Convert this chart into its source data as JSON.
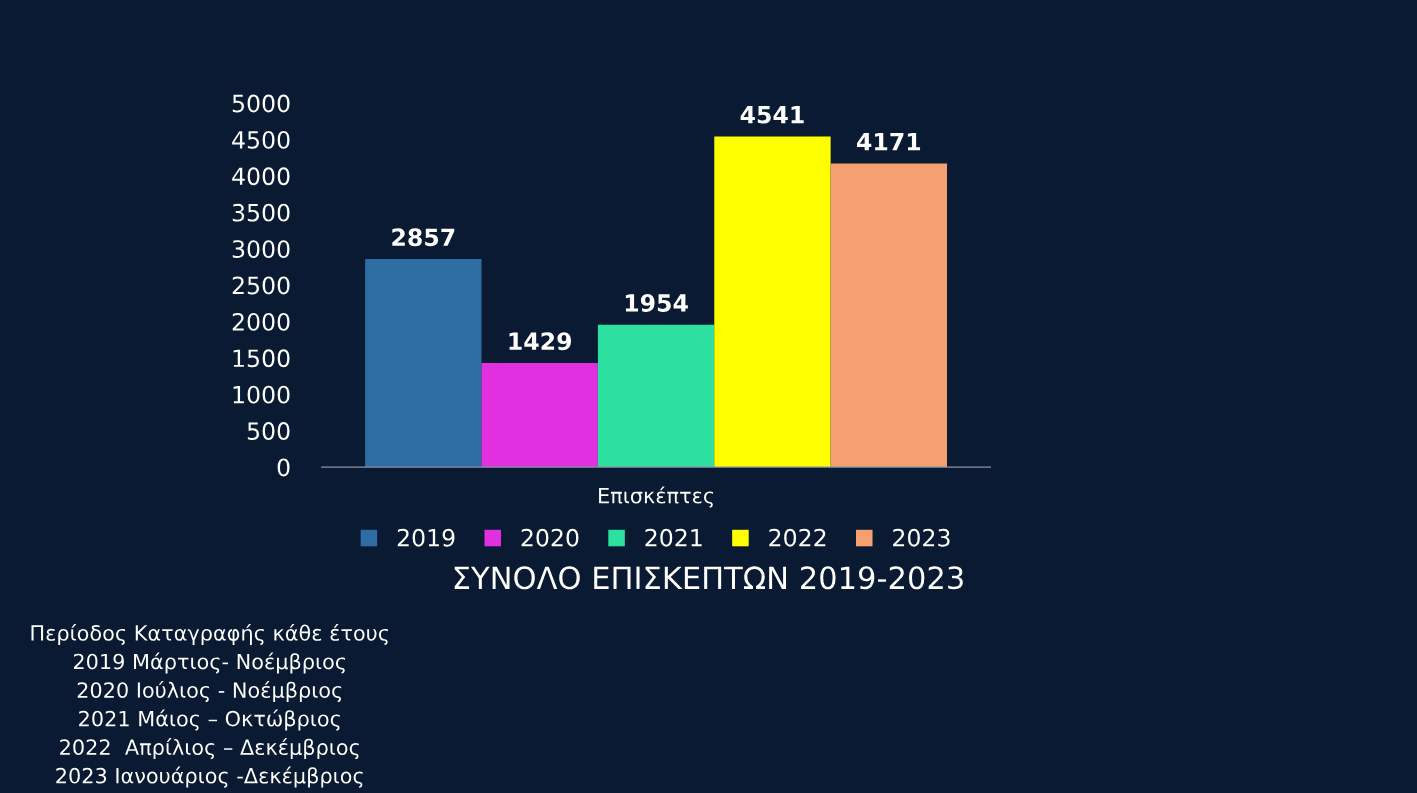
{
  "chart_data": {
    "type": "bar",
    "title": "ΣΥΝΟΛΟ ΕΠΙΣΚΕΠΤΩΝ 2019-2023",
    "categories": [
      "Επισκέπτες"
    ],
    "series": [
      {
        "name": "2019",
        "color": "#2e6da4",
        "values": [
          2857
        ]
      },
      {
        "name": "2020",
        "color": "#e030e0",
        "values": [
          1429
        ]
      },
      {
        "name": "2021",
        "color": "#2ee0a0",
        "values": [
          1954
        ]
      },
      {
        "name": "2022",
        "color": "#ffff00",
        "values": [
          4541
        ]
      },
      {
        "name": "2023",
        "color": "#f4a070",
        "values": [
          4171
        ]
      }
    ],
    "ylim": [
      0,
      5000
    ],
    "yticks": [
      0,
      500,
      1000,
      1500,
      2000,
      2500,
      3000,
      3500,
      4000,
      4500,
      5000
    ],
    "grid": false,
    "legend": "bottom",
    "data_labels": true,
    "annotations": [
      "Περίοδος Καταγραφής κάθε έτους",
      "2019 Μάρτιος- Νοέμβριος",
      "2020 Ιούλιος - Νοέμβριος",
      "2021 Μάιος – Οκτώβριος",
      "2022  Απρίλιος – Δεκέμβριος",
      "2023 Ιανουάριος -Δεκέμβριος"
    ]
  }
}
